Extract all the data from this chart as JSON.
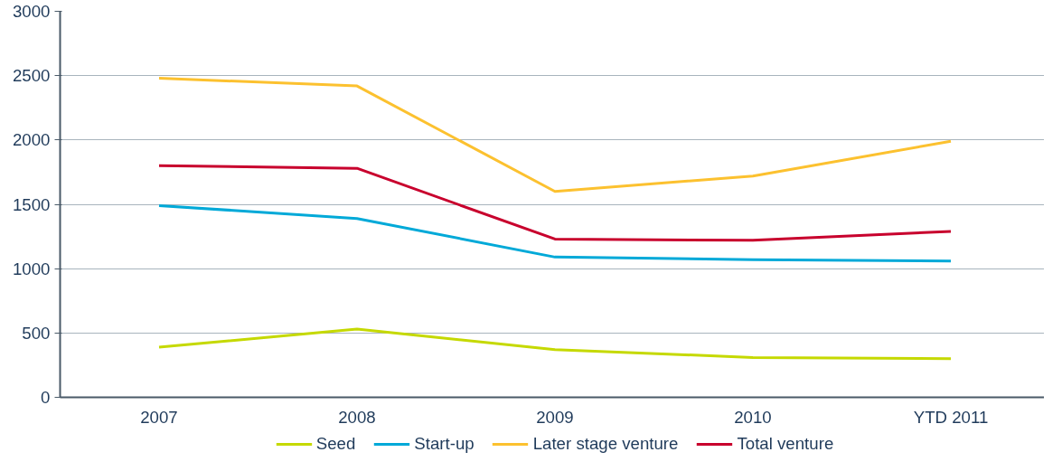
{
  "chart_data": {
    "type": "line",
    "categories": [
      "2007",
      "2008",
      "2009",
      "2010",
      "YTD 2011"
    ],
    "series": [
      {
        "name": "Seed",
        "color": "#c5d900",
        "values": [
          390,
          530,
          370,
          310,
          300
        ]
      },
      {
        "name": "Start-up",
        "color": "#00a9d8",
        "values": [
          1490,
          1390,
          1090,
          1070,
          1060
        ]
      },
      {
        "name": "Later stage venture",
        "color": "#fcc12f",
        "values": [
          2480,
          2420,
          1600,
          1720,
          1990
        ]
      },
      {
        "name": "Total venture",
        "color": "#c8002d",
        "values": [
          1800,
          1780,
          1230,
          1220,
          1290
        ]
      }
    ],
    "ylim": [
      0,
      3000
    ],
    "yticks": [
      0,
      500,
      1000,
      1500,
      2000,
      2500,
      3000
    ],
    "grid": "y",
    "legend": "bottom",
    "marker": "none",
    "line_style": "solid"
  }
}
